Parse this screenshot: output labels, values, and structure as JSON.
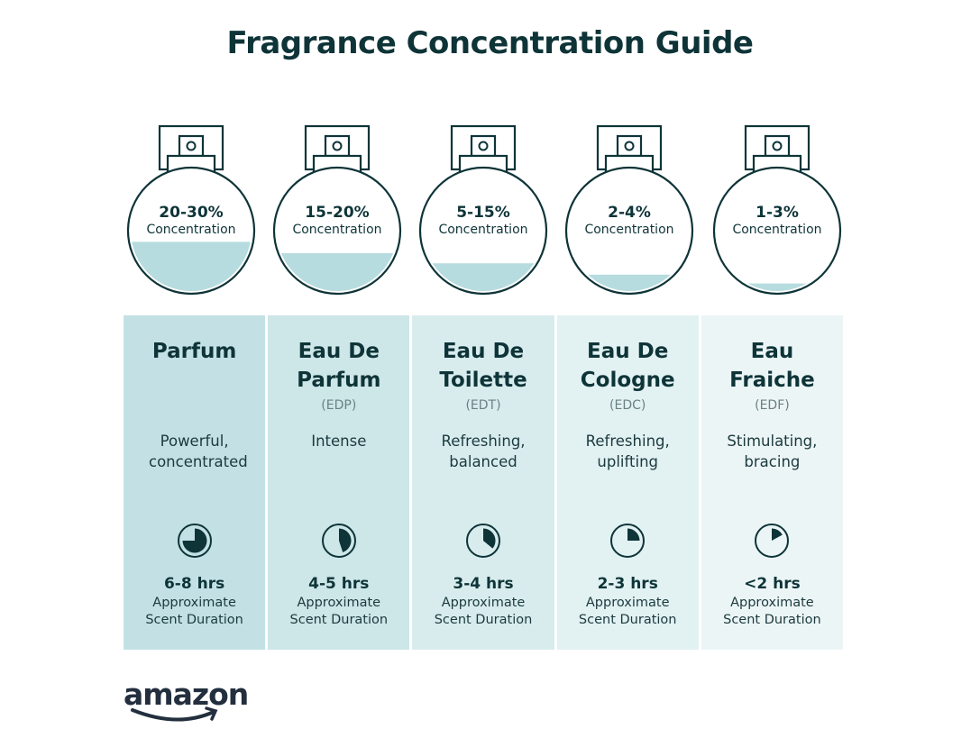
{
  "title": "Fragrance Concentration Guide",
  "colors": {
    "text": "#0e3438",
    "liquid": "#b6dcdf",
    "column_start": "#c2e1e4",
    "column_end": "#eef6f7"
  },
  "columns": [
    {
      "concentration": "20-30%",
      "concentration_label": "Concentration",
      "fill_level": 0.39,
      "name": "Parfum",
      "abbr": "",
      "description": "Powerful, concentrated",
      "duration": "6-8 hrs",
      "duration_label_1": "Approximate",
      "duration_label_2": "Scent Duration",
      "clock_fraction": 0.75,
      "bg": "#c3e1e4"
    },
    {
      "concentration": "15-20%",
      "concentration_label": "Concentration",
      "fill_level": 0.3,
      "name": "Eau De Parfum",
      "abbr": "(EDP)",
      "description": "Intense",
      "duration": "4-5 hrs",
      "duration_label_1": "Approximate",
      "duration_label_2": "Scent Duration",
      "clock_fraction": 0.45,
      "bg": "#cde6e8"
    },
    {
      "concentration": "5-15%",
      "concentration_label": "Concentration",
      "fill_level": 0.22,
      "name": "Eau De Toilette",
      "abbr": "(EDT)",
      "description": "Refreshing, balanced",
      "duration": "3-4 hrs",
      "duration_label_1": "Approximate",
      "duration_label_2": "Scent Duration",
      "clock_fraction": 0.36,
      "bg": "#d8ecee"
    },
    {
      "concentration": "2-4%",
      "concentration_label": "Concentration",
      "fill_level": 0.13,
      "name": "Eau De Cologne",
      "abbr": "(EDC)",
      "description": "Refreshing, uplifting",
      "duration": "2-3 hrs",
      "duration_label_1": "Approximate",
      "duration_label_2": "Scent Duration",
      "clock_fraction": 0.25,
      "bg": "#e2f1f2"
    },
    {
      "concentration": "1-3%",
      "concentration_label": "Concentration",
      "fill_level": 0.06,
      "name": "Eau Fraiche",
      "abbr": "(EDF)",
      "description": "Stimulating, bracing",
      "duration": "<2 hrs",
      "duration_label_1": "Approximate",
      "duration_label_2": "Scent Duration",
      "clock_fraction": 0.17,
      "bg": "#ecf5f6"
    }
  ],
  "logo": "amazon"
}
